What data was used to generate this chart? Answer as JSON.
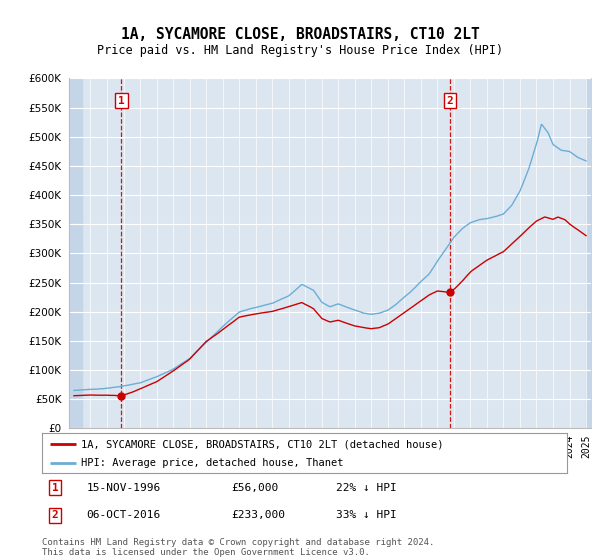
{
  "title": "1A, SYCAMORE CLOSE, BROADSTAIRS, CT10 2LT",
  "subtitle": "Price paid vs. HM Land Registry's House Price Index (HPI)",
  "ylim": [
    0,
    600000
  ],
  "yticks": [
    0,
    50000,
    100000,
    150000,
    200000,
    250000,
    300000,
    350000,
    400000,
    450000,
    500000,
    550000,
    600000
  ],
  "xlim_start": 1993.7,
  "xlim_end": 2025.3,
  "background_color": "#dce6f1",
  "hatch_color": "#c5d5e8",
  "red_line_color": "#cc0000",
  "blue_line_color": "#6aaed6",
  "vline_color": "#cc0000",
  "annotation_box_color": "#cc0000",
  "sale1_x": 1996.876712,
  "sale1_y": 56000,
  "sale1_label": "1",
  "sale1_date": "15-NOV-1996",
  "sale1_price": "£56,000",
  "sale1_hpi": "22% ↓ HPI",
  "sale2_x": 2016.756164,
  "sale2_y": 233000,
  "sale2_label": "2",
  "sale2_date": "06-OCT-2016",
  "sale2_price": "£233,000",
  "sale2_hpi": "33% ↓ HPI",
  "legend_label_red": "1A, SYCAMORE CLOSE, BROADSTAIRS, CT10 2LT (detached house)",
  "legend_label_blue": "HPI: Average price, detached house, Thanet",
  "footer1": "Contains HM Land Registry data © Crown copyright and database right 2024.",
  "footer2": "This data is licensed under the Open Government Licence v3.0.",
  "hpi_keypoints": [
    [
      1994.0,
      65000
    ],
    [
      1995.0,
      67000
    ],
    [
      1996.0,
      69000
    ],
    [
      1997.0,
      73000
    ],
    [
      1998.0,
      78000
    ],
    [
      1999.0,
      88000
    ],
    [
      2000.0,
      102000
    ],
    [
      2001.0,
      120000
    ],
    [
      2002.0,
      148000
    ],
    [
      2003.0,
      175000
    ],
    [
      2004.0,
      200000
    ],
    [
      2005.0,
      208000
    ],
    [
      2006.0,
      215000
    ],
    [
      2007.0,
      228000
    ],
    [
      2007.8,
      248000
    ],
    [
      2008.5,
      238000
    ],
    [
      2009.0,
      218000
    ],
    [
      2009.5,
      210000
    ],
    [
      2010.0,
      215000
    ],
    [
      2010.5,
      210000
    ],
    [
      2011.0,
      205000
    ],
    [
      2011.5,
      200000
    ],
    [
      2012.0,
      198000
    ],
    [
      2012.5,
      200000
    ],
    [
      2013.0,
      205000
    ],
    [
      2013.5,
      215000
    ],
    [
      2014.0,
      228000
    ],
    [
      2014.5,
      240000
    ],
    [
      2015.0,
      255000
    ],
    [
      2015.5,
      268000
    ],
    [
      2016.0,
      290000
    ],
    [
      2016.5,
      310000
    ],
    [
      2017.0,
      330000
    ],
    [
      2017.5,
      345000
    ],
    [
      2018.0,
      355000
    ],
    [
      2018.5,
      360000
    ],
    [
      2019.0,
      362000
    ],
    [
      2019.5,
      365000
    ],
    [
      2020.0,
      370000
    ],
    [
      2020.5,
      385000
    ],
    [
      2021.0,
      410000
    ],
    [
      2021.5,
      445000
    ],
    [
      2022.0,
      490000
    ],
    [
      2022.3,
      525000
    ],
    [
      2022.7,
      510000
    ],
    [
      2023.0,
      490000
    ],
    [
      2023.5,
      480000
    ],
    [
      2024.0,
      478000
    ],
    [
      2024.5,
      468000
    ],
    [
      2025.0,
      462000
    ]
  ],
  "red_keypoints": [
    [
      1994.0,
      56000
    ],
    [
      1995.0,
      57500
    ],
    [
      1996.0,
      57000
    ],
    [
      1996.876712,
      56000
    ],
    [
      1997.5,
      62000
    ],
    [
      1998.0,
      68000
    ],
    [
      1999.0,
      80000
    ],
    [
      2000.0,
      98000
    ],
    [
      2001.0,
      118000
    ],
    [
      2002.0,
      148000
    ],
    [
      2003.0,
      168000
    ],
    [
      2004.0,
      190000
    ],
    [
      2005.0,
      196000
    ],
    [
      2006.0,
      200000
    ],
    [
      2007.0,
      208000
    ],
    [
      2007.8,
      215000
    ],
    [
      2008.5,
      205000
    ],
    [
      2009.0,
      188000
    ],
    [
      2009.5,
      182000
    ],
    [
      2010.0,
      185000
    ],
    [
      2010.5,
      180000
    ],
    [
      2011.0,
      175000
    ],
    [
      2011.5,
      172000
    ],
    [
      2012.0,
      170000
    ],
    [
      2012.5,
      172000
    ],
    [
      2013.0,
      178000
    ],
    [
      2013.5,
      188000
    ],
    [
      2014.0,
      198000
    ],
    [
      2014.5,
      208000
    ],
    [
      2015.0,
      218000
    ],
    [
      2015.5,
      228000
    ],
    [
      2016.0,
      235000
    ],
    [
      2016.756164,
      233000
    ],
    [
      2017.0,
      238000
    ],
    [
      2017.5,
      252000
    ],
    [
      2018.0,
      268000
    ],
    [
      2018.5,
      278000
    ],
    [
      2019.0,
      288000
    ],
    [
      2019.5,
      295000
    ],
    [
      2020.0,
      302000
    ],
    [
      2020.5,
      315000
    ],
    [
      2021.0,
      328000
    ],
    [
      2021.5,
      342000
    ],
    [
      2022.0,
      355000
    ],
    [
      2022.5,
      362000
    ],
    [
      2023.0,
      358000
    ],
    [
      2023.3,
      362000
    ],
    [
      2023.7,
      358000
    ],
    [
      2024.0,
      350000
    ],
    [
      2024.5,
      340000
    ],
    [
      2025.0,
      330000
    ]
  ]
}
